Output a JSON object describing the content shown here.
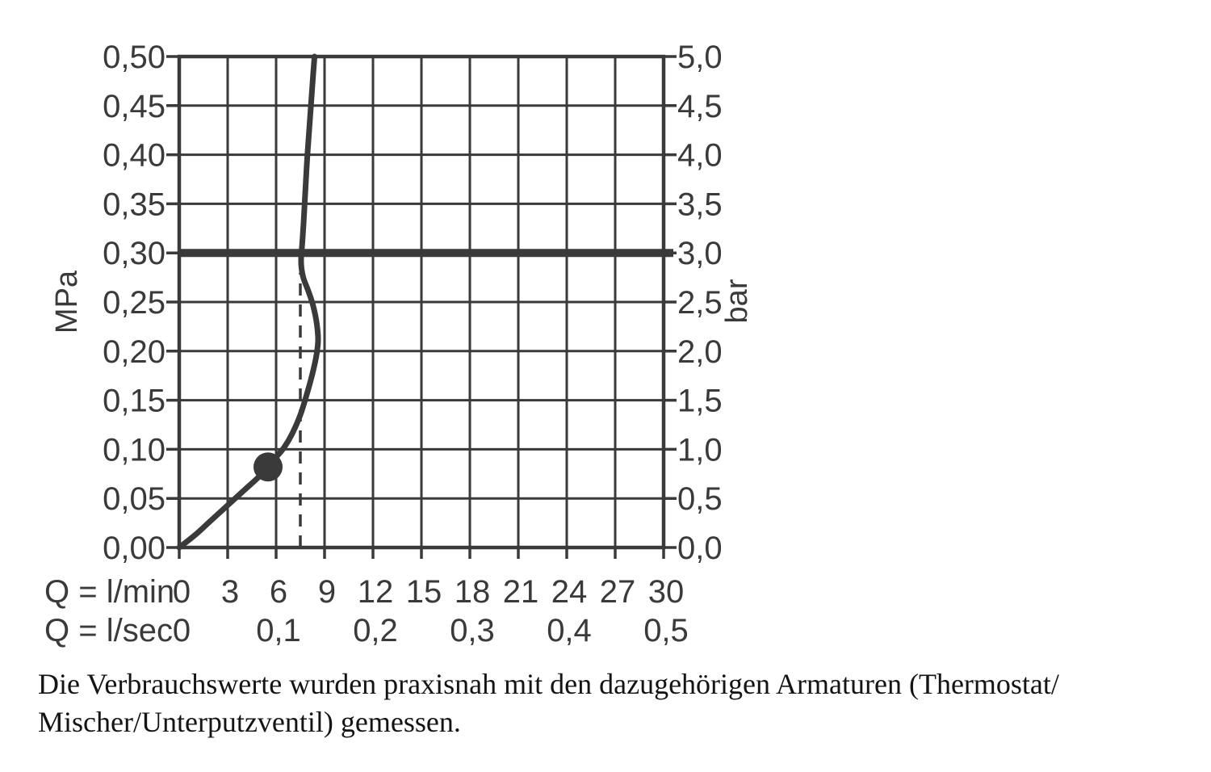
{
  "chart_data": {
    "type": "line",
    "grid": true,
    "x_axis": {
      "row1_label": "Q = l/min",
      "row1_ticks": [
        "0",
        "3",
        "6",
        "9",
        "12",
        "15",
        "18",
        "21",
        "24",
        "27",
        "30"
      ],
      "row2_label": "Q = l/sec",
      "row2_ticks": [
        {
          "lmin": 0,
          "label": "0"
        },
        {
          "lmin": 6,
          "label": "0,1"
        },
        {
          "lmin": 12,
          "label": "0,2"
        },
        {
          "lmin": 18,
          "label": "0,3"
        },
        {
          "lmin": 24,
          "label": "0,4"
        },
        {
          "lmin": 30,
          "label": "0,5"
        }
      ],
      "range_lmin": [
        0,
        30
      ],
      "grid_step_lmin": 3
    },
    "y_axis_left": {
      "unit": "MPa",
      "ticks": [
        "0,50",
        "0,45",
        "0,40",
        "0,35",
        "0,30",
        "0,25",
        "0,20",
        "0,15",
        "0,10",
        "0,05",
        "0,00"
      ],
      "range_mpa": [
        0,
        0.5
      ],
      "grid_step_mpa": 0.05
    },
    "y_axis_right": {
      "unit": "bar",
      "ticks": [
        "5,0",
        "4,5",
        "4,0",
        "3,5",
        "3,0",
        "2,5",
        "2,0",
        "1,5",
        "1,0",
        "0,5",
        "0,0"
      ]
    },
    "series": [
      {
        "name": "flow-pressure-curve",
        "points_lmin_mpa": [
          [
            0,
            0
          ],
          [
            1,
            0.013
          ],
          [
            2,
            0.028
          ],
          [
            3,
            0.043
          ],
          [
            4,
            0.058
          ],
          [
            5,
            0.073
          ],
          [
            5.5,
            0.082
          ],
          [
            6,
            0.092
          ],
          [
            6.5,
            0.102
          ],
          [
            7,
            0.116
          ],
          [
            7.5,
            0.135
          ],
          [
            7.9,
            0.156
          ],
          [
            8.25,
            0.177
          ],
          [
            8.5,
            0.196
          ],
          [
            8.6,
            0.212
          ],
          [
            8.5,
            0.23
          ],
          [
            8.28,
            0.247
          ],
          [
            8.0,
            0.261
          ],
          [
            7.7,
            0.274
          ],
          [
            7.57,
            0.285
          ],
          [
            7.55,
            0.295
          ],
          [
            7.62,
            0.31
          ],
          [
            7.7,
            0.33
          ],
          [
            7.8,
            0.36
          ],
          [
            7.92,
            0.395
          ],
          [
            8.07,
            0.43
          ],
          [
            8.2,
            0.46
          ],
          [
            8.3,
            0.483
          ],
          [
            8.38,
            0.5
          ]
        ]
      }
    ],
    "annotations": {
      "bold_horizontal_line_mpa": 0.3,
      "dashed_vertical_line": {
        "lmin": 7.5,
        "from_mpa": 0,
        "to_mpa": 0.28
      },
      "marker_dot": {
        "lmin": 5.5,
        "mpa": 0.082
      }
    }
  },
  "caption": {
    "line1": "Die Verbrauchswerte wurden praxisnah mit den dazugehörigen Armaturen (Thermostat/",
    "line2": "Mischer/Unterputzventil) gemessen."
  },
  "colors": {
    "ink": "#3a3a3a",
    "caption_text": "#141414",
    "background": "#ffffff"
  }
}
